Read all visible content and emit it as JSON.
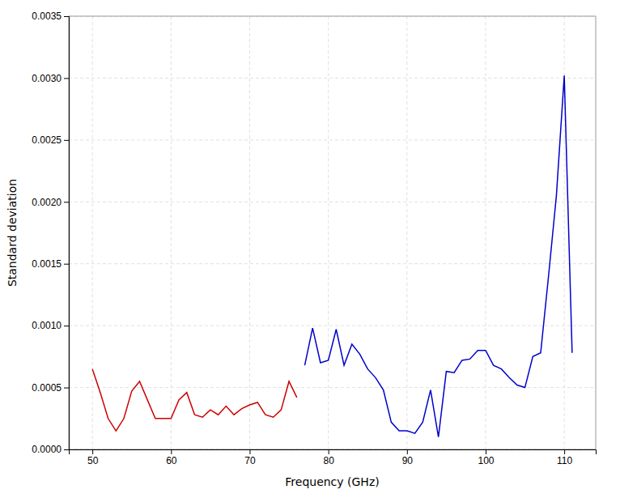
{
  "chart_data": {
    "type": "line",
    "xlabel": "Frequency (GHz)",
    "ylabel": "Standard deviation",
    "series": [
      {
        "color": "#cc0000",
        "x": [
          50,
          51,
          52,
          53,
          54,
          55,
          56,
          57,
          58,
          59,
          60,
          61,
          62,
          63,
          64,
          65,
          66,
          67,
          68,
          69,
          70,
          71,
          72,
          73,
          74,
          75,
          76
        ],
        "values": [
          0.00065,
          0.00046,
          0.00025,
          0.00015,
          0.00025,
          0.00047,
          0.00055,
          0.0004,
          0.00025,
          0.00025,
          0.00025,
          0.0004,
          0.00046,
          0.00028,
          0.00026,
          0.00032,
          0.00028,
          0.00035,
          0.00028,
          0.00033,
          0.00036,
          0.00038,
          0.00028,
          0.00026,
          0.00032,
          0.00055,
          0.00042
        ]
      },
      {
        "color": "#0000cc",
        "x": [
          77,
          78,
          79,
          80,
          81,
          82,
          83,
          84,
          85,
          86,
          87,
          88,
          89,
          90,
          91,
          92,
          93,
          94,
          95,
          96,
          97,
          98,
          99,
          100,
          101,
          102,
          103,
          104,
          105,
          106,
          107,
          108,
          109,
          110,
          111
        ],
        "values": [
          0.00068,
          0.00098,
          0.0007,
          0.00072,
          0.00097,
          0.00068,
          0.00085,
          0.00077,
          0.00065,
          0.00058,
          0.00048,
          0.00022,
          0.00015,
          0.00015,
          0.00013,
          0.00022,
          0.00048,
          0.0001,
          0.00063,
          0.00062,
          0.00072,
          0.00073,
          0.0008,
          0.0008,
          0.00068,
          0.00065,
          0.00058,
          0.00052,
          0.0005,
          0.00075,
          0.00078,
          0.0014,
          0.00205,
          0.00302,
          0.00078
        ]
      }
    ],
    "xlim": [
      47,
      114
    ],
    "ylim": [
      0.0,
      0.0035
    ],
    "xticks": [
      50,
      60,
      70,
      80,
      90,
      100,
      110
    ],
    "yticks": [
      {
        "value": 0.0,
        "label": "0.0000"
      },
      {
        "value": 0.0005,
        "label": "0.0005"
      },
      {
        "value": 0.001,
        "label": "0.0010"
      },
      {
        "value": 0.0015,
        "label": "0.0015"
      },
      {
        "value": 0.002,
        "label": "0.0020"
      },
      {
        "value": 0.0025,
        "label": "0.0025"
      },
      {
        "value": 0.003,
        "label": "0.0030"
      },
      {
        "value": 0.0035,
        "label": "0.0035"
      }
    ],
    "grid": true
  }
}
